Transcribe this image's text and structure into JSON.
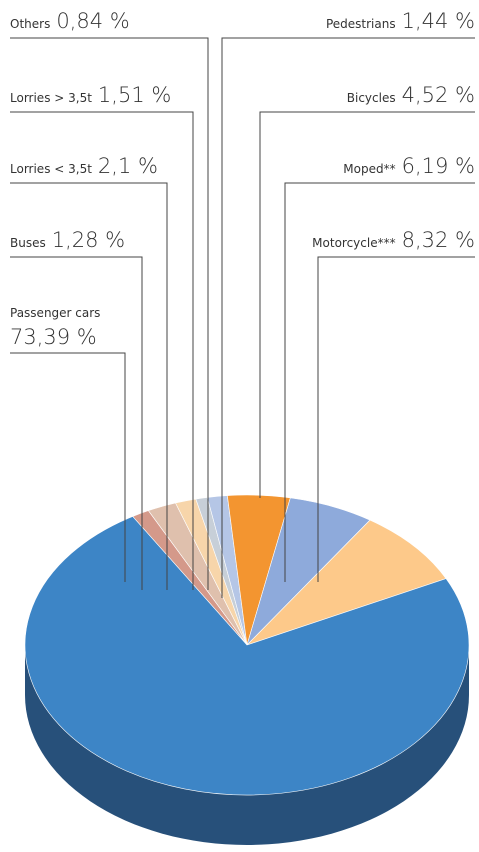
{
  "chart_data": {
    "type": "pie",
    "categories": [
      "Buses",
      "Lorries < 3,5t",
      "Lorries > 3,5t",
      "Others",
      "Pedestrians",
      "Bicycles",
      "Moped**",
      "Motorcycle***",
      "Passenger cars"
    ],
    "values": [
      1.28,
      2.1,
      1.51,
      0.84,
      1.44,
      4.52,
      6.19,
      8.32,
      73.39
    ],
    "value_labels": [
      "1,28 %",
      "2,1 %",
      "1,51 %",
      "0,84 %",
      "1,44 %",
      "4,52 %",
      "6,19 %",
      "8,32 %",
      "73,39 %"
    ],
    "colors": [
      "#d4998a",
      "#dfc0ad",
      "#f7d5aa",
      "#c7cfd8",
      "#b5c6e6",
      "#f39530",
      "#8eaadb",
      "#fdc98a",
      "#3d85c6"
    ]
  }
}
